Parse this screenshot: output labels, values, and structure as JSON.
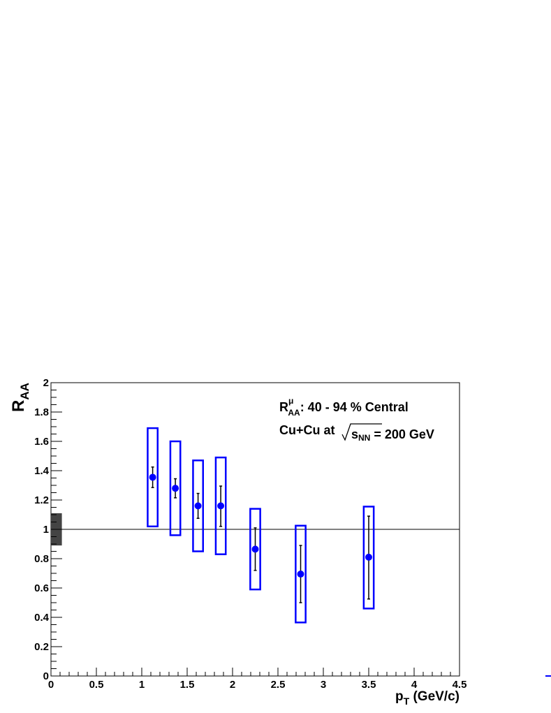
{
  "chart_data": {
    "type": "scatter",
    "title": "",
    "xlabel": {
      "main": "p",
      "sub": "T",
      "rest": " (GeV/c)"
    },
    "ylabel": {
      "main": "R",
      "sub": "AA"
    },
    "xlim": [
      0,
      4.5
    ],
    "ylim": [
      0,
      2
    ],
    "xticks": [
      0,
      0.5,
      1,
      1.5,
      2,
      2.5,
      3,
      3.5,
      4,
      4.5
    ],
    "xtick_labels": [
      "0",
      "0.5",
      "1",
      "1.5",
      "2",
      "2.5",
      "3",
      "3.5",
      "4",
      "4.5"
    ],
    "yticks": [
      0,
      0.2,
      0.4,
      0.6,
      0.8,
      1,
      1.2,
      1.4,
      1.6,
      1.8,
      2
    ],
    "ytick_labels": [
      "0",
      "0.2",
      "0.4",
      "0.6",
      "0.8",
      "1",
      "1.2",
      "1.4",
      "1.6",
      "1.8",
      "2"
    ],
    "grid": false,
    "reference_line": {
      "y": 1
    },
    "normalization_uncertainty": {
      "x0": 0,
      "x1": 0.12,
      "y_low": 0.89,
      "y_high": 1.11
    },
    "series": [
      {
        "marker_color": "#0000ff",
        "points": [
          {
            "x": 1.12,
            "y": 1.355,
            "stat_low": 1.285,
            "stat_high": 1.425,
            "sys_low": 1.02,
            "sys_high": 1.69,
            "box_half_width": 0.055
          },
          {
            "x": 1.37,
            "y": 1.28,
            "stat_low": 1.215,
            "stat_high": 1.345,
            "sys_low": 0.96,
            "sys_high": 1.6,
            "box_half_width": 0.055
          },
          {
            "x": 1.62,
            "y": 1.16,
            "stat_low": 1.075,
            "stat_high": 1.245,
            "sys_low": 0.85,
            "sys_high": 1.47,
            "box_half_width": 0.055
          },
          {
            "x": 1.87,
            "y": 1.16,
            "stat_low": 1.02,
            "stat_high": 1.295,
            "sys_low": 0.83,
            "sys_high": 1.49,
            "box_half_width": 0.055
          },
          {
            "x": 2.25,
            "y": 0.865,
            "stat_low": 0.72,
            "stat_high": 1.01,
            "sys_low": 0.59,
            "sys_high": 1.14,
            "box_half_width": 0.055
          },
          {
            "x": 2.75,
            "y": 0.695,
            "stat_low": 0.5,
            "stat_high": 0.89,
            "sys_low": 0.365,
            "sys_high": 1.025,
            "box_half_width": 0.055
          },
          {
            "x": 3.5,
            "y": 0.81,
            "stat_low": 0.525,
            "stat_high": 1.09,
            "sys_low": 0.46,
            "sys_high": 1.155,
            "box_half_width": 0.055
          }
        ]
      }
    ],
    "annotations": {
      "line1": {
        "main": "R",
        "sub": "AA",
        "sup": "μ",
        "rest": ": 40 - 94 % Central"
      },
      "line2": {
        "pre": "Cu+Cu at ",
        "main": "s",
        "sub": "NN",
        "rest": " = 200 GeV"
      }
    },
    "colors": {
      "marker": "#0000ff",
      "box": "#0000ff",
      "norm_box": "#444444",
      "axis": "#000000"
    }
  }
}
